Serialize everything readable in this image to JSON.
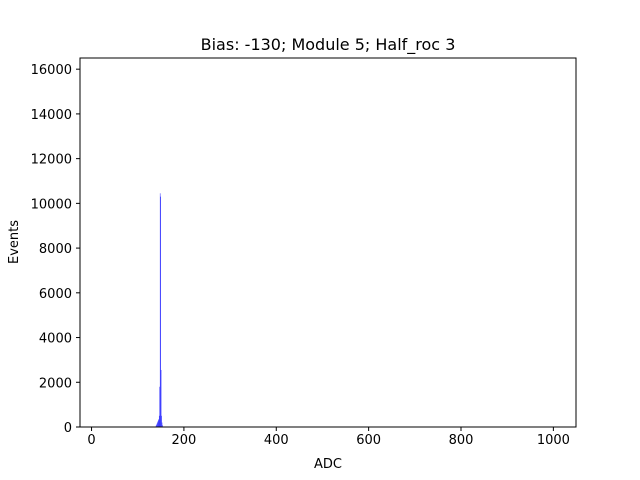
{
  "chart_data": {
    "type": "bar",
    "title": "Bias: -130; Module 5; Half_roc 3",
    "xlabel": "ADC",
    "ylabel": "Events",
    "xlim": [
      -25,
      1049
    ],
    "ylim": [
      0,
      16500
    ],
    "xticks": [
      0,
      200,
      400,
      600,
      800,
      1000
    ],
    "yticks": [
      0,
      2000,
      4000,
      6000,
      8000,
      10000,
      12000,
      14000,
      16000
    ],
    "bar_color": "#0000ff",
    "bar_alpha": 0.7,
    "grid": false,
    "legend": false,
    "bins": [
      {
        "x": 139,
        "value": 60
      },
      {
        "x": 140,
        "value": 100
      },
      {
        "x": 141,
        "value": 150
      },
      {
        "x": 142,
        "value": 200
      },
      {
        "x": 143,
        "value": 250
      },
      {
        "x": 144,
        "value": 300
      },
      {
        "x": 145,
        "value": 350
      },
      {
        "x": 146,
        "value": 500
      },
      {
        "x": 147,
        "value": 1800
      },
      {
        "x": 148,
        "value": 10450
      },
      {
        "x": 149,
        "value": 10300
      },
      {
        "x": 150,
        "value": 2550
      },
      {
        "x": 151,
        "value": 500
      },
      {
        "x": 152,
        "value": 200
      },
      {
        "x": 153,
        "value": 80
      }
    ]
  }
}
